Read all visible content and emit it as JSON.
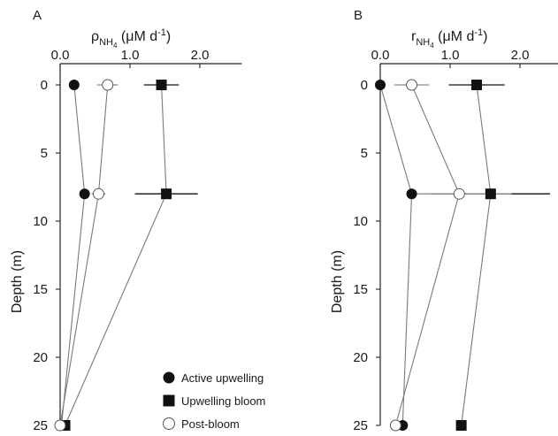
{
  "chart_data": [
    {
      "type": "line",
      "panel_label": "A",
      "xlabel_symbol": "ρ",
      "xlabel_sub": "NH",
      "xlabel_subsub": "4",
      "xlabel_units": " (μM d",
      "xlabel_units_sup": "-1",
      "xlabel_units_close": ")",
      "ylabel": "Depth (m)",
      "x_ticks": [
        "0.0",
        "1.0",
        "2.0"
      ],
      "y_ticks": [
        "0",
        "5",
        "10",
        "15",
        "20",
        "25"
      ],
      "xlim": [
        0,
        2.6
      ],
      "ylim": [
        0,
        25
      ],
      "x_axis_position": "top",
      "y_inverted": true,
      "series": [
        {
          "name": "Active upwelling",
          "marker": "filled-circle",
          "points": [
            {
              "y": 0,
              "x": 0.2
            },
            {
              "y": 8,
              "x": 0.35
            },
            {
              "y": 25,
              "x": 0.02
            }
          ]
        },
        {
          "name": "Upwelling bloom",
          "marker": "filled-square",
          "points": [
            {
              "y": 0,
              "x": 1.45,
              "err": 0.25
            },
            {
              "y": 8,
              "x": 1.52,
              "err": 0.45
            },
            {
              "y": 25,
              "x": 0.07
            }
          ]
        },
        {
          "name": "Post-bloom",
          "marker": "open-circle",
          "points": [
            {
              "y": 0,
              "x": 0.68,
              "err": 0.15
            },
            {
              "y": 8,
              "x": 0.55,
              "err": 0.1
            },
            {
              "y": 25,
              "x": 0.0
            }
          ]
        }
      ]
    },
    {
      "type": "line",
      "panel_label": "B",
      "xlabel_symbol": "r",
      "xlabel_sub": "NH",
      "xlabel_subsub": "4",
      "xlabel_units": " (μM d",
      "xlabel_units_sup": "-1",
      "xlabel_units_close": ")",
      "ylabel": "Depth (m)",
      "x_ticks": [
        "0.0",
        "1.0",
        "2.0"
      ],
      "y_ticks": [
        "0",
        "5",
        "10",
        "15",
        "20",
        "25"
      ],
      "xlim": [
        0,
        2.6
      ],
      "ylim": [
        0,
        25
      ],
      "x_axis_position": "top",
      "y_inverted": true,
      "series": [
        {
          "name": "Active upwelling",
          "marker": "filled-circle",
          "points": [
            {
              "y": 0,
              "x": 0.0
            },
            {
              "y": 8,
              "x": 0.45
            },
            {
              "y": 25,
              "x": 0.32
            }
          ]
        },
        {
          "name": "Upwelling bloom",
          "marker": "filled-square",
          "points": [
            {
              "y": 0,
              "x": 1.38,
              "err": 0.4
            },
            {
              "y": 8,
              "x": 1.58,
              "err": 0.85
            },
            {
              "y": 25,
              "x": 1.16
            }
          ]
        },
        {
          "name": "Post-bloom",
          "marker": "open-circle",
          "points": [
            {
              "y": 0,
              "x": 0.45,
              "err": 0.25
            },
            {
              "y": 8,
              "x": 1.13,
              "err": 0.75
            },
            {
              "y": 25,
              "x": 0.22
            }
          ]
        }
      ]
    }
  ],
  "legend": {
    "position": "lower-left of panel A",
    "entries": [
      {
        "label": "Active upwelling",
        "marker": "filled-circle"
      },
      {
        "label": "Upwelling bloom",
        "marker": "filled-square"
      },
      {
        "label": "Post-bloom",
        "marker": "open-circle"
      }
    ]
  }
}
